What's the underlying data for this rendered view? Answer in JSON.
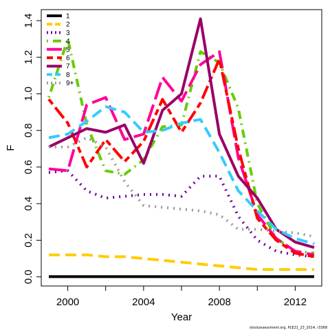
{
  "chart_data": {
    "type": "line",
    "xlabel": "Year",
    "ylabel": "F",
    "xlim": [
      1998.6,
      2013.4
    ],
    "ylim": [
      -0.05,
      1.46
    ],
    "xticks": [
      2000,
      2004,
      2008,
      2012
    ],
    "xticks_minor": [
      2002,
      2006,
      2010
    ],
    "yticks": [
      0.0,
      0.2,
      0.4,
      0.6,
      0.8,
      1.0,
      1.2,
      1.4
    ],
    "x": [
      1999,
      2000,
      2001,
      2002,
      2003,
      2004,
      2005,
      2006,
      2007,
      2008,
      2009,
      2010,
      2011,
      2012,
      2013
    ],
    "series": [
      {
        "name": "1",
        "color": "#000000",
        "dash": "solid",
        "values": [
          0.001,
          0.001,
          0.001,
          0.001,
          0.001,
          0.001,
          0.001,
          0.001,
          0.001,
          0.001,
          0.001,
          0.001,
          0.001,
          0.001,
          0.001
        ]
      },
      {
        "name": "2",
        "color": "#FFCC00",
        "dash": "dashed",
        "values": [
          0.12,
          0.12,
          0.12,
          0.11,
          0.11,
          0.1,
          0.09,
          0.08,
          0.07,
          0.06,
          0.05,
          0.04,
          0.04,
          0.04,
          0.04
        ]
      },
      {
        "name": "3",
        "color": "#660099",
        "dash": "dotted",
        "values": [
          0.57,
          0.58,
          0.47,
          0.43,
          0.44,
          0.45,
          0.45,
          0.44,
          0.55,
          0.55,
          0.33,
          0.2,
          0.14,
          0.12,
          0.11
        ]
      },
      {
        "name": "4",
        "color": "#66CC00",
        "dash": "dotdash",
        "values": [
          0.98,
          1.3,
          0.83,
          0.58,
          0.56,
          0.64,
          0.82,
          0.83,
          1.23,
          1.17,
          0.92,
          0.4,
          0.21,
          0.14,
          0.13
        ]
      },
      {
        "name": "5",
        "color": "#FF0099",
        "dash": "longdash",
        "values": [
          0.59,
          0.58,
          0.94,
          0.98,
          0.75,
          0.78,
          1.09,
          0.96,
          1.16,
          1.23,
          0.65,
          0.34,
          0.21,
          0.14,
          0.12
        ]
      },
      {
        "name": "6",
        "color": "#FF0000",
        "dash": "twodash",
        "values": [
          0.97,
          0.84,
          0.6,
          0.75,
          0.63,
          0.74,
          0.97,
          0.79,
          0.95,
          1.19,
          0.7,
          0.32,
          0.2,
          0.13,
          0.11
        ]
      },
      {
        "name": "7",
        "color": "#990066",
        "dash": "solid",
        "values": [
          0.71,
          0.76,
          0.81,
          0.79,
          0.83,
          0.62,
          0.91,
          1.0,
          1.41,
          0.78,
          0.55,
          0.43,
          0.26,
          0.19,
          0.16
        ]
      },
      {
        "name": "8",
        "color": "#33CCFF",
        "dash": "dashed",
        "values": [
          0.76,
          0.78,
          0.85,
          0.93,
          0.9,
          0.79,
          0.8,
          0.84,
          0.86,
          0.68,
          0.47,
          0.36,
          0.26,
          0.21,
          0.18
        ]
      },
      {
        "name": "9+",
        "color": "#999999",
        "dash": "dotted",
        "values": [
          0.71,
          0.71,
          0.76,
          0.71,
          0.52,
          0.39,
          0.38,
          0.37,
          0.36,
          0.34,
          0.26,
          0.26,
          0.25,
          0.24,
          0.22
        ]
      }
    ],
    "legend_position": "top-left",
    "grid": false
  },
  "footnote": "stockassessment.org, PLE21_23_2014, r3368"
}
